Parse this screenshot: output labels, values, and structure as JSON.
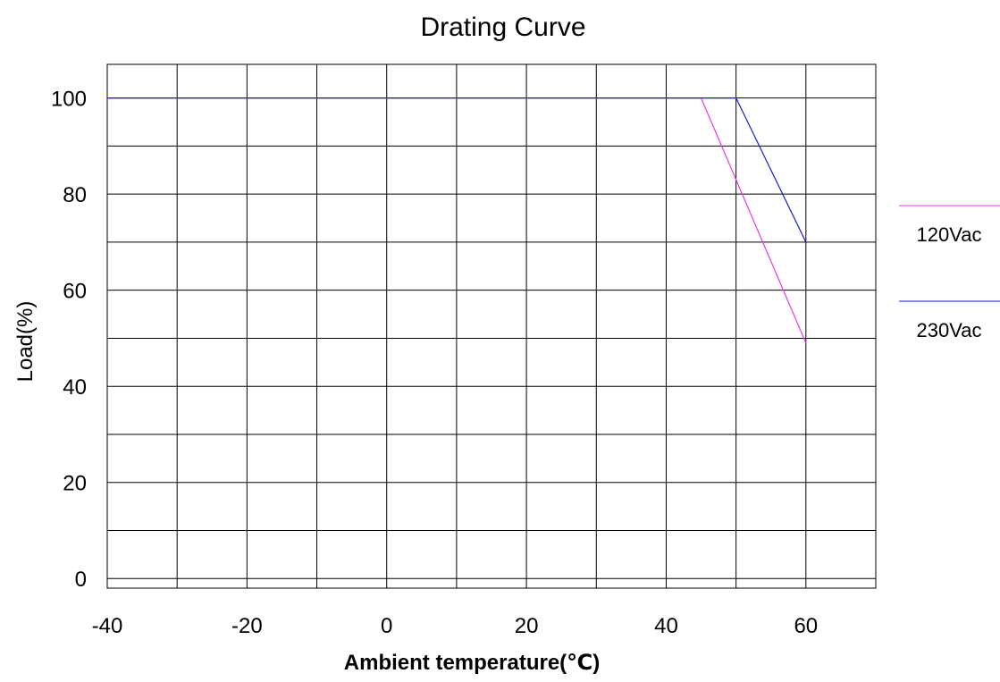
{
  "chart_data": {
    "type": "line",
    "title": "Drating Curve",
    "xlabel": "Ambient temperature(℃)",
    "ylabel": "Load(%)",
    "xlim": [
      -40,
      70
    ],
    "ylim": [
      -2,
      107
    ],
    "xticks": [
      -40,
      -20,
      0,
      20,
      40,
      60
    ],
    "yticks": [
      0,
      20,
      40,
      60,
      80,
      100
    ],
    "xtick_labels": [
      "-40",
      "-20",
      "0",
      "20",
      "40",
      "60"
    ],
    "ytick_labels": [
      "0",
      "20",
      "40",
      "60",
      "80",
      "100"
    ],
    "grid": true,
    "legend_position": "right",
    "series": [
      {
        "name": "120Vac",
        "color": "#e63ce6",
        "x": [
          -40,
          45,
          60
        ],
        "y": [
          100,
          100,
          49
        ]
      },
      {
        "name": "230Vac",
        "color": "#1a1acc",
        "x": [
          -40,
          50,
          60
        ],
        "y": [
          100,
          100,
          70
        ]
      }
    ]
  }
}
